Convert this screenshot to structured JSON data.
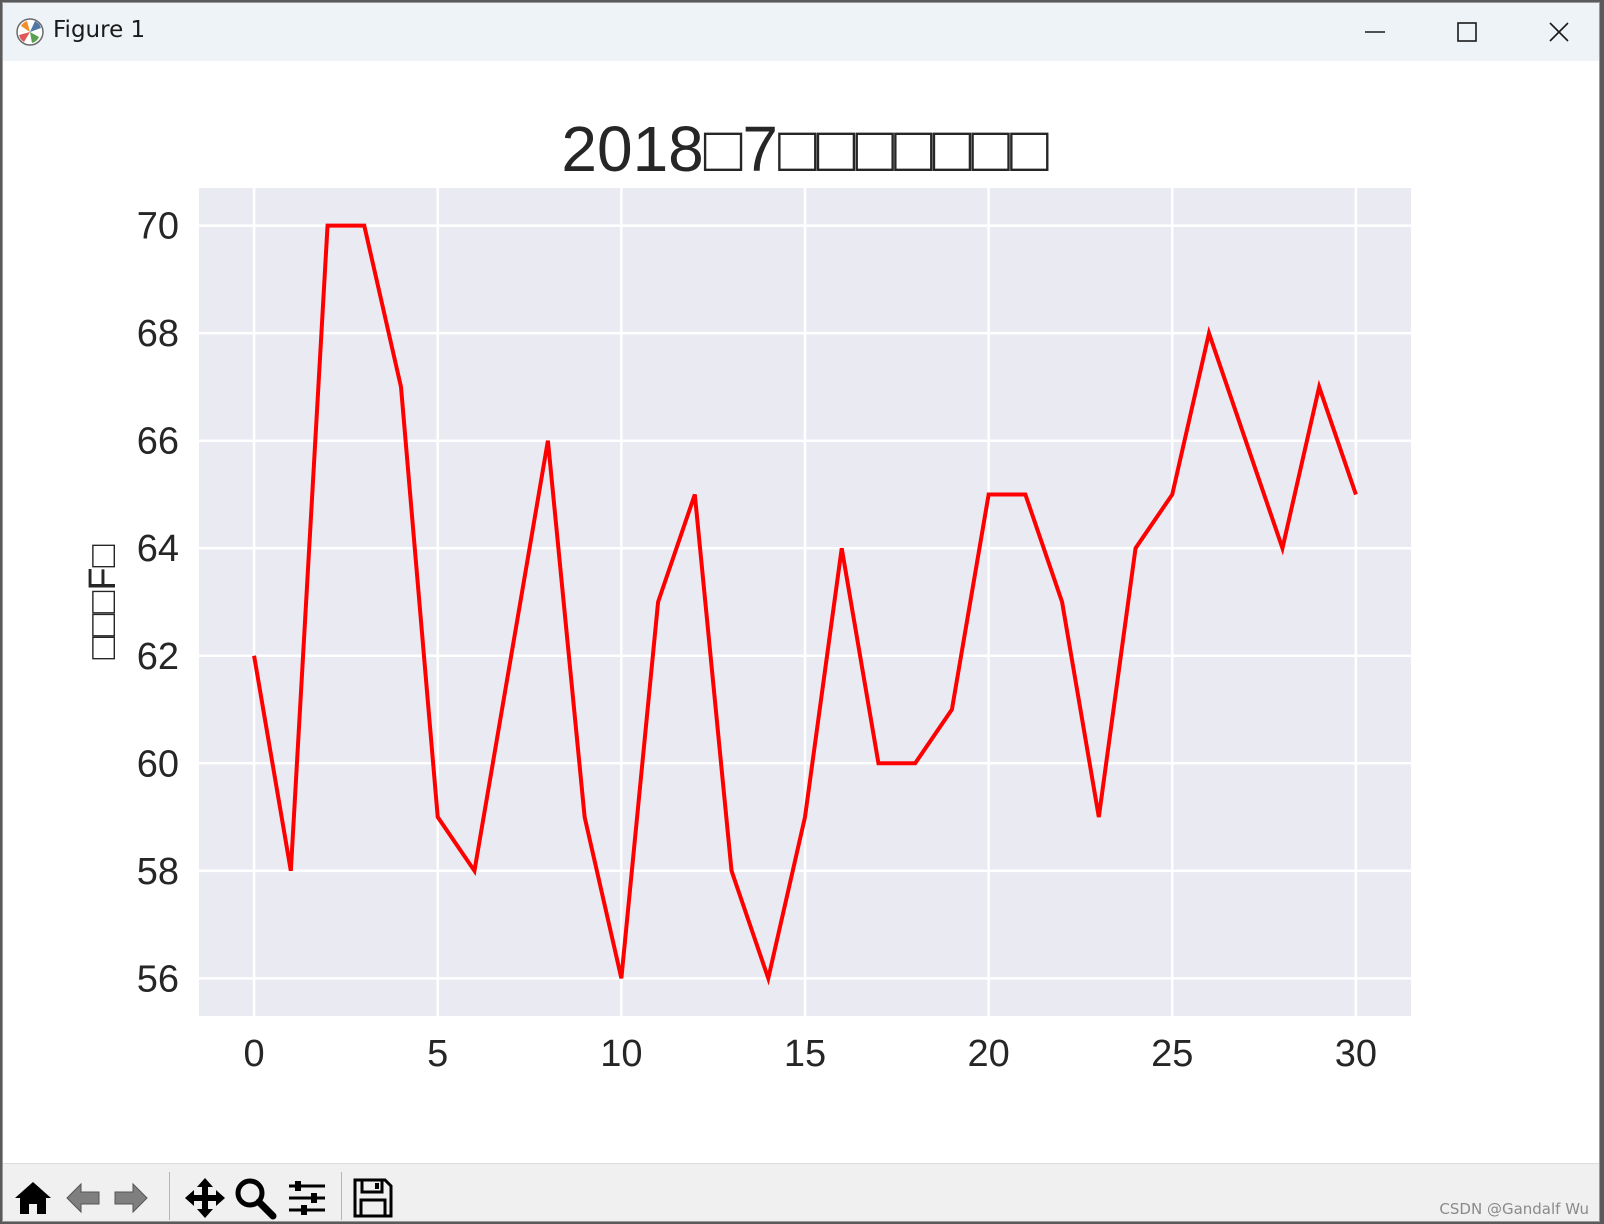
{
  "window": {
    "title": "Figure 1",
    "icons": {
      "app": "matplotlib-icon",
      "minimize": "minimize-icon",
      "maximize": "maximize-icon",
      "close": "close-icon"
    }
  },
  "toolbar": {
    "tools": [
      "home-icon",
      "back-arrow-icon",
      "forward-arrow-icon",
      "pan-icon",
      "zoom-icon",
      "configure-subplots-icon",
      "save-icon"
    ]
  },
  "watermark": "CSDN @Gandalf Wu",
  "chart_data": {
    "type": "line",
    "title": "2018□7□□□□□□□",
    "xlabel": "",
    "ylabel": "□□□F□",
    "x": [
      0,
      1,
      2,
      3,
      4,
      5,
      6,
      7,
      8,
      9,
      10,
      11,
      12,
      13,
      14,
      15,
      16,
      17,
      18,
      19,
      20,
      21,
      22,
      23,
      24,
      25,
      26,
      27,
      28,
      29,
      30
    ],
    "series": [
      {
        "values": [
          62,
          58,
          70,
          70,
          67,
          59,
          58,
          62,
          66,
          59,
          56,
          63,
          65,
          58,
          56,
          59,
          64,
          60,
          60,
          61,
          65,
          65,
          63,
          59,
          64,
          65,
          68,
          66,
          64,
          67,
          65
        ],
        "color": "#ff0000"
      }
    ],
    "xticks": [
      0,
      5,
      10,
      15,
      20,
      25,
      30
    ],
    "yticks": [
      56,
      58,
      60,
      62,
      64,
      66,
      68,
      70
    ],
    "xlim": [
      -1.5,
      31.5
    ],
    "ylim": [
      55.3,
      70.7
    ],
    "grid": true,
    "style": {
      "axes_background": "#eaeaf2",
      "grid_color": "#ffffff",
      "text_color": "#262626"
    }
  }
}
